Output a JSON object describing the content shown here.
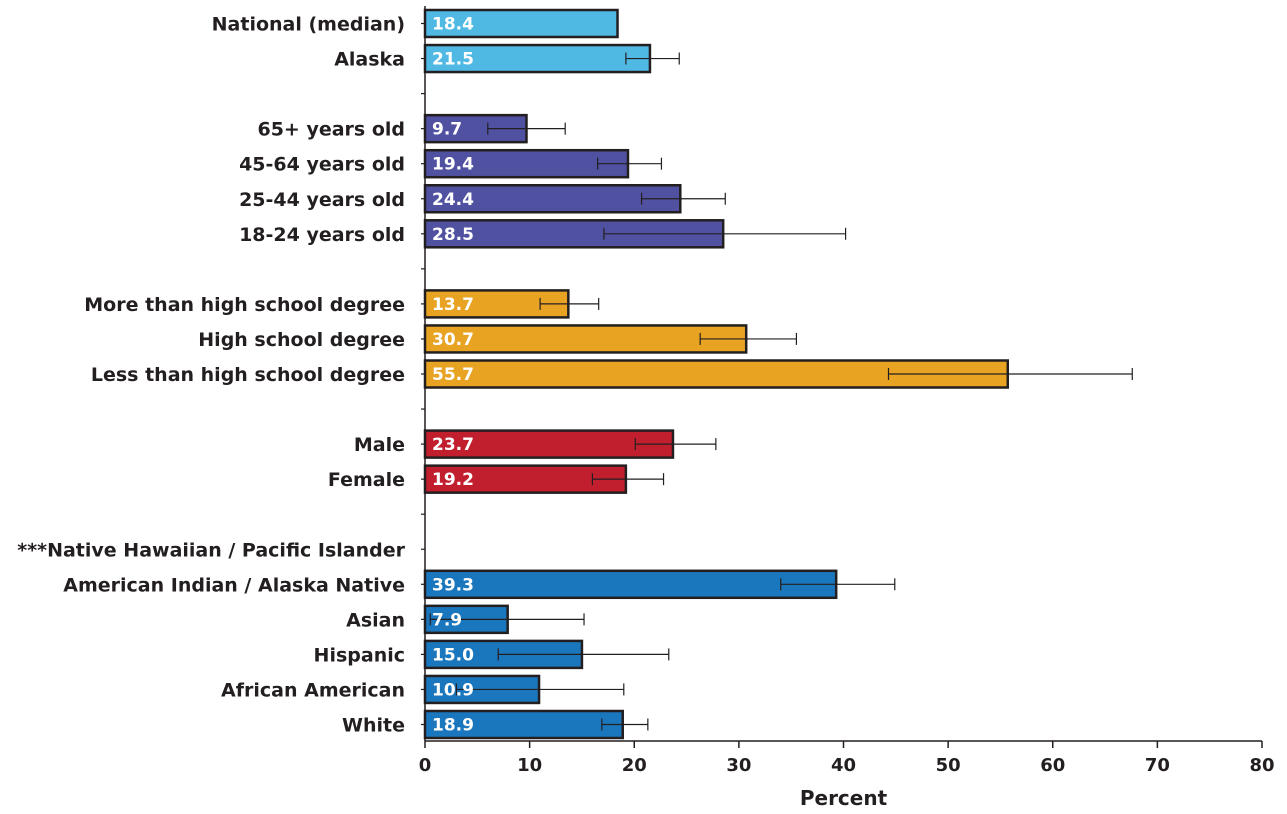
{
  "chart_data": {
    "type": "bar",
    "orientation": "horizontal",
    "xlabel": "Percent",
    "xlim": [
      0,
      80
    ],
    "xticks": [
      0,
      10,
      20,
      30,
      40,
      50,
      60,
      70,
      80
    ],
    "grid": false,
    "error_bars": true,
    "rows": [
      {
        "label": "National (median)",
        "value": 18.4,
        "value_label": "18.4",
        "ci": null,
        "color": "#4fb8e3"
      },
      {
        "label": "Alaska",
        "value": 21.5,
        "value_label": "21.5",
        "ci": [
          19.2,
          24.3
        ],
        "color": "#4fb8e3"
      },
      {
        "label": "",
        "value": null,
        "value_label": null,
        "ci": null,
        "color": null
      },
      {
        "label": "65+ years old",
        "value": 9.7,
        "value_label": "9.7",
        "ci": [
          6.0,
          13.4
        ],
        "color": "#5151a2"
      },
      {
        "label": "45-64 years old",
        "value": 19.4,
        "value_label": "19.4",
        "ci": [
          16.5,
          22.6
        ],
        "color": "#5151a2"
      },
      {
        "label": "25-44 years old",
        "value": 24.4,
        "value_label": "24.4",
        "ci": [
          20.7,
          28.7
        ],
        "color": "#5151a2"
      },
      {
        "label": "18-24 years old",
        "value": 28.5,
        "value_label": "28.5",
        "ci": [
          17.1,
          40.2
        ],
        "color": "#5151a2"
      },
      {
        "label": "",
        "value": null,
        "value_label": null,
        "ci": null,
        "color": null
      },
      {
        "label": "More than high school degree",
        "value": 13.7,
        "value_label": "13.7",
        "ci": [
          11.0,
          16.6
        ],
        "color": "#e8a323"
      },
      {
        "label": "High school degree",
        "value": 30.7,
        "value_label": "30.7",
        "ci": [
          26.3,
          35.5
        ],
        "color": "#e8a323"
      },
      {
        "label": "Less than high school degree",
        "value": 55.7,
        "value_label": "55.7",
        "ci": [
          44.3,
          67.6
        ],
        "color": "#e8a323"
      },
      {
        "label": "",
        "value": null,
        "value_label": null,
        "ci": null,
        "color": null
      },
      {
        "label": "Male",
        "value": 23.7,
        "value_label": "23.7",
        "ci": [
          20.1,
          27.8
        ],
        "color": "#c11f2e"
      },
      {
        "label": "Female",
        "value": 19.2,
        "value_label": "19.2",
        "ci": [
          16.0,
          22.8
        ],
        "color": "#c11f2e"
      },
      {
        "label": "",
        "value": null,
        "value_label": null,
        "ci": null,
        "color": null
      },
      {
        "label": "***Native Hawaiian / Pacific Islander",
        "value": null,
        "value_label": null,
        "ci": null,
        "color": "#1b77bd"
      },
      {
        "label": "American Indian / Alaska Native",
        "value": 39.3,
        "value_label": "39.3",
        "ci": [
          34.0,
          44.9
        ],
        "color": "#1b77bd"
      },
      {
        "label": "Asian",
        "value": 7.9,
        "value_label": "7.9",
        "ci": [
          0.5,
          15.2
        ],
        "color": "#1b77bd"
      },
      {
        "label": "Hispanic",
        "value": 15.0,
        "value_label": "15.0",
        "ci": [
          7.0,
          23.3
        ],
        "color": "#1b77bd"
      },
      {
        "label": "African American",
        "value": 10.9,
        "value_label": "10.9",
        "ci": [
          3.0,
          19.0
        ],
        "color": "#1b77bd"
      },
      {
        "label": "White",
        "value": 18.9,
        "value_label": "18.9",
        "ci": [
          16.9,
          21.3
        ],
        "color": "#1b77bd"
      }
    ]
  }
}
